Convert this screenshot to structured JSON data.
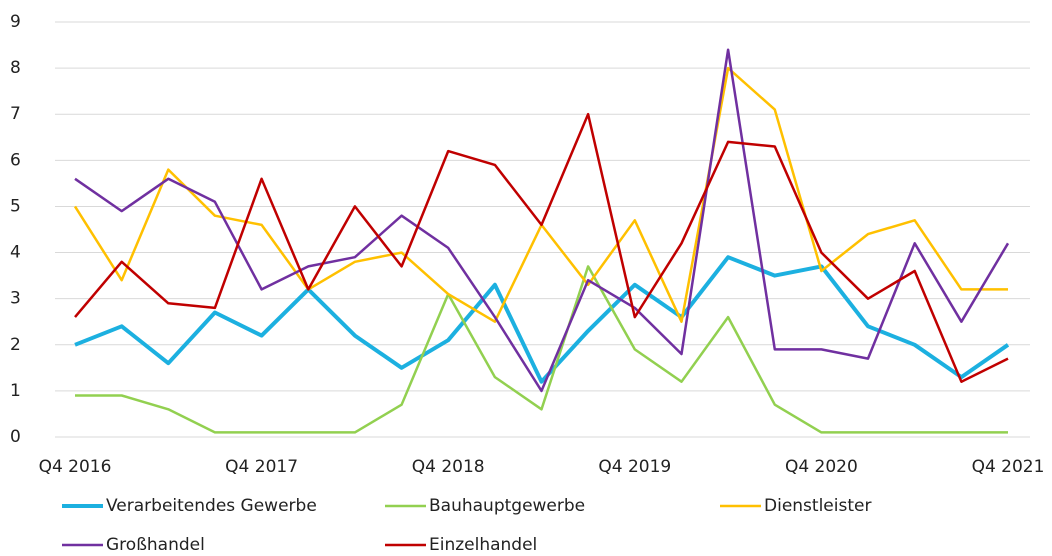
{
  "chart_data": {
    "type": "line",
    "categories": [
      "Q4 2016",
      null,
      null,
      null,
      "Q4 2017",
      null,
      null,
      null,
      "Q4 2018",
      null,
      null,
      null,
      "Q4 2019",
      null,
      null,
      null,
      "Q4 2020",
      null,
      null,
      null,
      "Q4 2021"
    ],
    "series": [
      {
        "name": "Verarbeitendes Gewerbe",
        "color": "#1cb0e0",
        "values": [
          2.0,
          2.4,
          1.6,
          2.7,
          2.2,
          3.2,
          2.2,
          1.5,
          2.1,
          3.3,
          1.2,
          2.3,
          3.3,
          2.6,
          3.9,
          3.5,
          3.7,
          2.4,
          2.0,
          1.3,
          2.0
        ]
      },
      {
        "name": "Bauhauptgewerbe",
        "color": "#92d050",
        "values": [
          0.9,
          0.9,
          0.6,
          0.1,
          0.1,
          0.1,
          0.1,
          0.7,
          3.1,
          1.3,
          0.6,
          3.7,
          1.9,
          1.2,
          2.6,
          0.7,
          0.1,
          0.1,
          0.1,
          0.1,
          0.1
        ]
      },
      {
        "name": "Dienstleister",
        "color": "#ffc000",
        "values": [
          5.0,
          3.4,
          5.8,
          4.8,
          4.6,
          3.2,
          3.8,
          4.0,
          3.1,
          2.5,
          4.6,
          3.3,
          4.7,
          2.5,
          8.0,
          7.1,
          3.6,
          4.4,
          4.7,
          3.2,
          3.2
        ]
      },
      {
        "name": "Großhandel",
        "color": "#7030a0",
        "values": [
          5.6,
          4.9,
          5.6,
          5.1,
          3.2,
          3.7,
          3.9,
          4.8,
          4.1,
          2.6,
          1.0,
          3.4,
          2.8,
          1.8,
          8.4,
          1.9,
          1.9,
          1.7,
          4.2,
          2.5,
          4.2
        ]
      },
      {
        "name": "Einzelhandel",
        "color": "#c00000",
        "values": [
          2.6,
          3.8,
          2.9,
          2.8,
          5.6,
          3.2,
          5.0,
          3.7,
          6.2,
          5.9,
          4.6,
          7.0,
          2.6,
          4.2,
          6.4,
          6.3,
          4.0,
          3.0,
          3.6,
          1.2,
          1.7
        ]
      }
    ],
    "ylim": [
      0,
      9
    ],
    "yticks": [
      0,
      1,
      2,
      3,
      4,
      5,
      6,
      7,
      8,
      9
    ],
    "grid": true,
    "legend": "bottom"
  }
}
